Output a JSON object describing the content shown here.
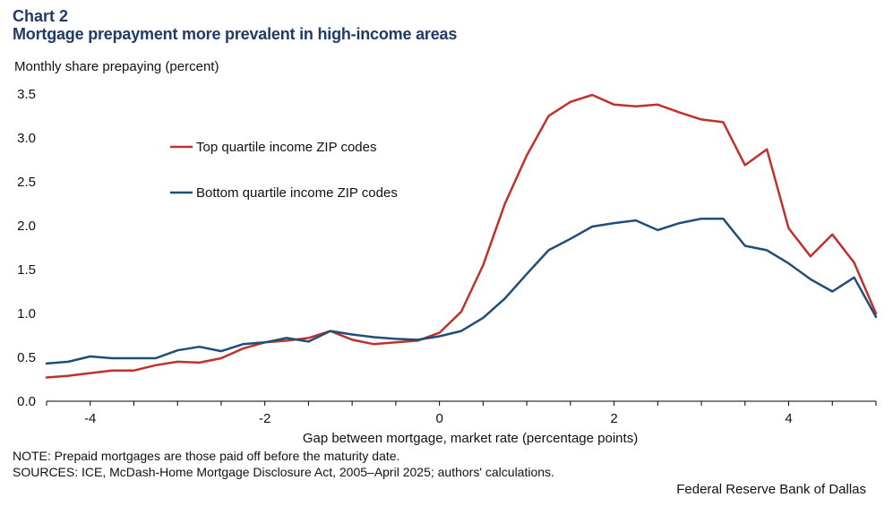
{
  "chart_label": "Chart 2",
  "chart_title": "Mortgage prepayment more prevalent in high-income areas",
  "note": "NOTE: Prepaid mortgages are those paid off before the maturity date.",
  "sources": "SOURCES: ICE, McDash-Home Mortgage Disclosure Act, 2005–April 2025; authors' calculations.",
  "credit": "Federal Reserve Bank of Dallas",
  "chart_data": {
    "type": "line",
    "title": "Mortgage prepayment more prevalent in high-income areas",
    "xlabel": "Gap between mortgage, market rate (percentage points)",
    "ylabel": "Monthly  share prepaying (percent)",
    "xlim": [
      -4.5,
      5.0
    ],
    "ylim": [
      0.0,
      3.5
    ],
    "xticks": [
      -4,
      -2,
      0,
      2,
      4
    ],
    "xtick_labels": [
      "-4",
      "-2",
      "0",
      "2",
      "4"
    ],
    "yticks": [
      0.0,
      0.5,
      1.0,
      1.5,
      2.0,
      2.5,
      3.0,
      3.5
    ],
    "ytick_labels": [
      "0.0",
      "0.5",
      "1.0",
      "1.5",
      "2.0",
      "2.5",
      "3.0",
      "3.5"
    ],
    "grid": false,
    "legend_position": "upper-left-inside",
    "x": [
      -4.5,
      -4.25,
      -4.0,
      -3.75,
      -3.5,
      -3.25,
      -3.0,
      -2.75,
      -2.5,
      -2.25,
      -2.0,
      -1.75,
      -1.5,
      -1.25,
      -1.0,
      -0.75,
      -0.5,
      -0.25,
      0.0,
      0.25,
      0.5,
      0.75,
      1.0,
      1.25,
      1.5,
      1.75,
      2.0,
      2.25,
      2.5,
      2.75,
      3.0,
      3.25,
      3.5,
      3.75,
      4.0,
      4.25,
      4.5,
      4.75,
      5.0
    ],
    "series": [
      {
        "name": "Top quartile income ZIP codes",
        "color": "#c0312b",
        "values": [
          0.27,
          0.29,
          0.32,
          0.35,
          0.35,
          0.41,
          0.45,
          0.44,
          0.49,
          0.6,
          0.67,
          0.69,
          0.72,
          0.8,
          0.7,
          0.65,
          0.67,
          0.69,
          0.78,
          1.02,
          1.55,
          2.25,
          2.8,
          3.25,
          3.41,
          3.49,
          3.38,
          3.36,
          3.38,
          3.29,
          3.21,
          3.18,
          2.69,
          2.87,
          1.97,
          1.65,
          1.9,
          1.58,
          1.0
        ]
      },
      {
        "name": "Bottom quartile income ZIP codes",
        "color": "#1f4e79",
        "values": [
          0.43,
          0.45,
          0.51,
          0.49,
          0.49,
          0.49,
          0.58,
          0.62,
          0.57,
          0.65,
          0.67,
          0.72,
          0.68,
          0.8,
          0.76,
          0.73,
          0.71,
          0.7,
          0.74,
          0.8,
          0.95,
          1.17,
          1.45,
          1.72,
          1.85,
          1.99,
          2.03,
          2.06,
          1.95,
          2.03,
          2.08,
          2.08,
          1.77,
          1.72,
          1.57,
          1.39,
          1.25,
          1.41,
          0.96
        ]
      }
    ]
  }
}
